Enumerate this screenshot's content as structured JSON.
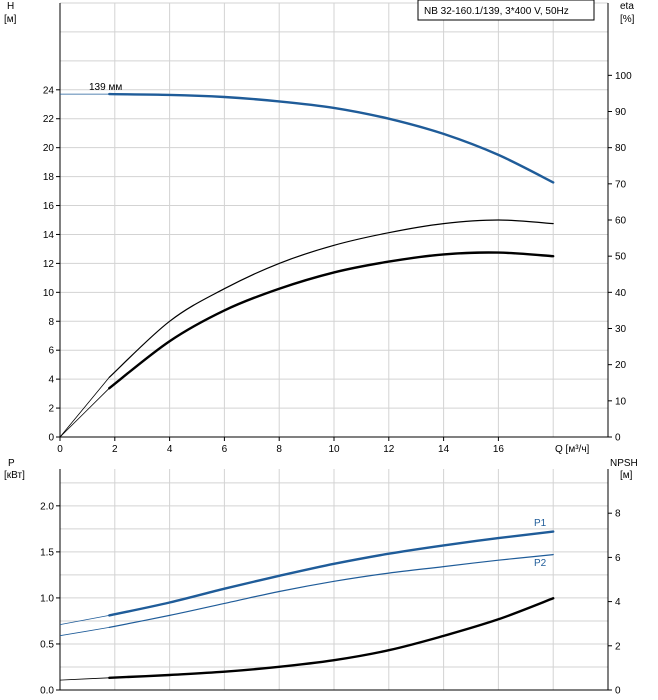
{
  "colors": {
    "blue": "#1f5c99",
    "grid": "#d3d3d3",
    "axis": "#000000"
  },
  "chart_data": [
    {
      "type": "line",
      "title": "NB 32-160.1/139, 3*400 V, 50Hz",
      "xlabel": "Q [м³/ч]",
      "ylabel_name": "H",
      "ylabel_unit": "[м]",
      "y2label_name": "eta",
      "y2label_unit": "[%]",
      "xlim": [
        0,
        20
      ],
      "ylim": [
        0,
        30
      ],
      "y2lim": [
        0,
        120
      ],
      "xticks": [
        "0",
        "2",
        "4",
        "6",
        "8",
        "10",
        "12",
        "14",
        "16"
      ],
      "yticks": [
        "0",
        "2",
        "4",
        "6",
        "8",
        "10",
        "12",
        "14",
        "16",
        "18",
        "20",
        "22",
        "24"
      ],
      "y2ticks": [
        "0",
        "10",
        "20",
        "30",
        "40",
        "50",
        "60",
        "70",
        "80",
        "90",
        "100"
      ],
      "grid": true,
      "annotation": "139 мм",
      "series": [
        {
          "axis": "left",
          "color": "#1f5c99",
          "width": 2.4,
          "points": [
            [
              1.8,
              23.7
            ],
            [
              4,
              23.65
            ],
            [
              6,
              23.5
            ],
            [
              8,
              23.2
            ],
            [
              10,
              22.75
            ],
            [
              12,
              22.0
            ],
            [
              14,
              20.95
            ],
            [
              16,
              19.5
            ],
            [
              18,
              17.6
            ]
          ],
          "ext_points": [
            [
              0,
              23.7
            ],
            [
              1.8,
              23.7
            ]
          ]
        },
        {
          "axis": "right",
          "color": "#000000",
          "width": 1.2,
          "points": [
            [
              1.8,
              16.5
            ],
            [
              4,
              32
            ],
            [
              6,
              41
            ],
            [
              8,
              48
            ],
            [
              10,
              53
            ],
            [
              12,
              56.5
            ],
            [
              14,
              59
            ],
            [
              16,
              60
            ],
            [
              18,
              59
            ]
          ],
          "ext_points": [
            [
              0,
              0
            ],
            [
              1.8,
              16.5
            ]
          ]
        },
        {
          "axis": "right",
          "color": "#000000",
          "width": 2.4,
          "points": [
            [
              1.8,
              13.5
            ],
            [
              4,
              26.5
            ],
            [
              6,
              35
            ],
            [
              8,
              41
            ],
            [
              10,
              45.5
            ],
            [
              12,
              48.5
            ],
            [
              14,
              50.5
            ],
            [
              16,
              51
            ],
            [
              18,
              50
            ]
          ],
          "ext_points": [
            [
              0,
              0
            ],
            [
              1.8,
              13.5
            ]
          ]
        }
      ]
    },
    {
      "type": "line",
      "title": "",
      "xlabel": "",
      "ylabel_name": "P",
      "ylabel_unit": "[кВт]",
      "y2label_name": "NPSH",
      "y2label_unit": "[м]",
      "xlim": [
        0,
        20
      ],
      "ylim": [
        0,
        2.4
      ],
      "y2lim": [
        0,
        10
      ],
      "yticks": [
        "0.0",
        "0.5",
        "1.0",
        "1.5",
        "2.0"
      ],
      "y2ticks": [
        "0",
        "2",
        "4",
        "6",
        "8"
      ],
      "grid": true,
      "series": [
        {
          "name": "P1",
          "axis": "left",
          "color": "#1f5c99",
          "width": 2.4,
          "points": [
            [
              1.8,
              0.81
            ],
            [
              4,
              0.95
            ],
            [
              6,
              1.1
            ],
            [
              8,
              1.24
            ],
            [
              10,
              1.37
            ],
            [
              12,
              1.48
            ],
            [
              14,
              1.57
            ],
            [
              16,
              1.65
            ],
            [
              18,
              1.72
            ]
          ],
          "ext_points": [
            [
              0,
              0.71
            ],
            [
              1.8,
              0.81
            ]
          ]
        },
        {
          "name": "P2",
          "axis": "left",
          "color": "#1f5c99",
          "width": 1.2,
          "points": [
            [
              1.8,
              0.68
            ],
            [
              4,
              0.81
            ],
            [
              6,
              0.94
            ],
            [
              8,
              1.07
            ],
            [
              10,
              1.18
            ],
            [
              12,
              1.27
            ],
            [
              14,
              1.34
            ],
            [
              16,
              1.41
            ],
            [
              18,
              1.47
            ]
          ],
          "ext_points": [
            [
              0,
              0.59
            ],
            [
              1.8,
              0.68
            ]
          ]
        },
        {
          "axis": "right",
          "color": "#000000",
          "width": 2.4,
          "points": [
            [
              1.8,
              0.55
            ],
            [
              4,
              0.68
            ],
            [
              6,
              0.83
            ],
            [
              8,
              1.05
            ],
            [
              10,
              1.35
            ],
            [
              12,
              1.8
            ],
            [
              14,
              2.45
            ],
            [
              16,
              3.2
            ],
            [
              18,
              4.15
            ]
          ],
          "ext_points": [
            [
              0,
              0.45
            ],
            [
              1.8,
              0.55
            ]
          ]
        }
      ]
    }
  ]
}
